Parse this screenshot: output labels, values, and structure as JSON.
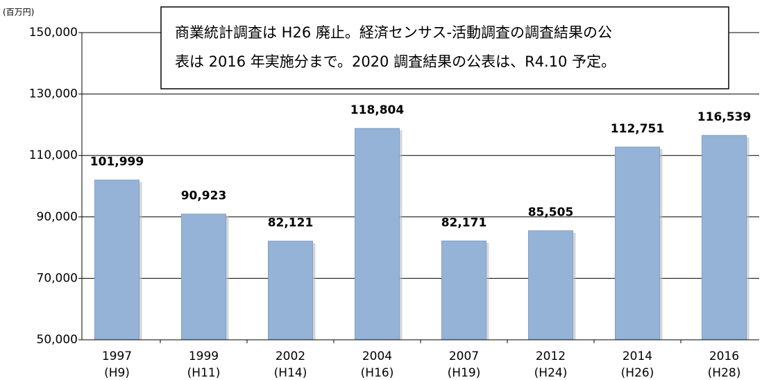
{
  "chart_data": {
    "type": "bar",
    "unit_label": "(百万円)",
    "annotation": [
      "商業統計調査は H26 廃止。経済センサス-活動調査の調査結果の公",
      "表は 2016 年実施分まで。2020 調査結果の公表は、R4.10 予定。"
    ],
    "categories": [
      [
        "1997",
        "(H9)"
      ],
      [
        "1999",
        "(H11)"
      ],
      [
        "2002",
        "(H14)"
      ],
      [
        "2004",
        "(H16)"
      ],
      [
        "2007",
        "(H19)"
      ],
      [
        "2012",
        "(H24)"
      ],
      [
        "2014",
        "(H26)"
      ],
      [
        "2016",
        "(H28)"
      ]
    ],
    "values": [
      101999,
      90923,
      82121,
      118804,
      82171,
      85505,
      112751,
      116539
    ],
    "value_labels": [
      "101,999",
      "90,923",
      "82,121",
      "118,804",
      "82,171",
      "85,505",
      "112,751",
      "116,539"
    ],
    "color": "#95b3d7",
    "ylim": [
      50000,
      150000
    ],
    "yticks": [
      {
        "value": 50000,
        "label": "50,000"
      },
      {
        "value": 70000,
        "label": "70,000"
      },
      {
        "value": 90000,
        "label": "90,000"
      },
      {
        "value": 110000,
        "label": "110,000"
      },
      {
        "value": 130000,
        "label": "130,000"
      },
      {
        "value": 150000,
        "label": "150,000"
      }
    ],
    "grid": true
  }
}
